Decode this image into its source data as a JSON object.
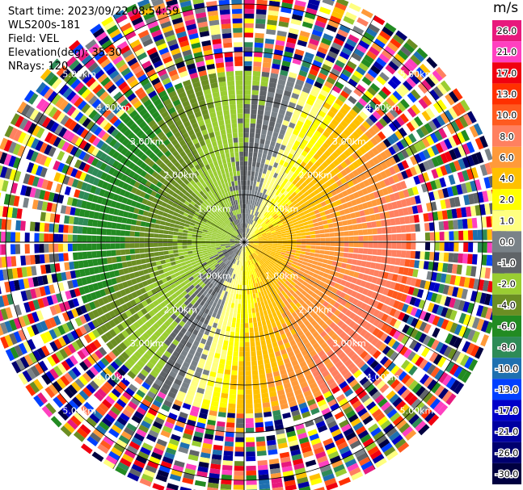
{
  "meta": {
    "start_time": "Start time: 2023/09/22 08:54:59",
    "instrument": "WLS200s-181",
    "field": "Field: VEL",
    "elevation": "Elevation(deg): 35.30",
    "nrays": "NRays: 120"
  },
  "colorbar": {
    "unit": "m/s",
    "ticks": [
      "26.0",
      "21.0",
      "17.0",
      "13.0",
      "10.0",
      "8.0",
      "6.0",
      "4.0",
      "2.0",
      "1.0",
      "0.0",
      "-1.0",
      "-2.0",
      "-4.0",
      "-6.0",
      "-8.0",
      "-10.0",
      "-13.0",
      "-17.0",
      "-21.0",
      "-26.0",
      "-30.0"
    ],
    "bands": [
      "#e8197d",
      "#ff40c0",
      "#f00010",
      "#ff3000",
      "#ff5a1f",
      "#ff8060",
      "#ff9a3a",
      "#ffc000",
      "#ffff00",
      "#ffff80",
      "#7a8288",
      "#606468",
      "#9acd32",
      "#6b8e23",
      "#228b22",
      "#2e8b57",
      "#1e70b0",
      "#0040ff",
      "#0000c8",
      "#0000a0",
      "#00006e",
      "#000040"
    ]
  },
  "chart_data": {
    "type": "heatmap",
    "projection": "polar PPI",
    "field": "VEL",
    "units": "m/s",
    "n_rays": 120,
    "range_rings_km": [
      1.0,
      2.0,
      3.0,
      4.0,
      5.0
    ],
    "range_labels": [
      "1.00km",
      "2.00km",
      "3.00km",
      "4.00km",
      "5.00km"
    ],
    "max_range_km": 5.5,
    "pattern": "dipole: positive velocities (yellow/orange) east, negative (green/blue) west, zero line gray; noisy beyond ~3.6 km"
  }
}
